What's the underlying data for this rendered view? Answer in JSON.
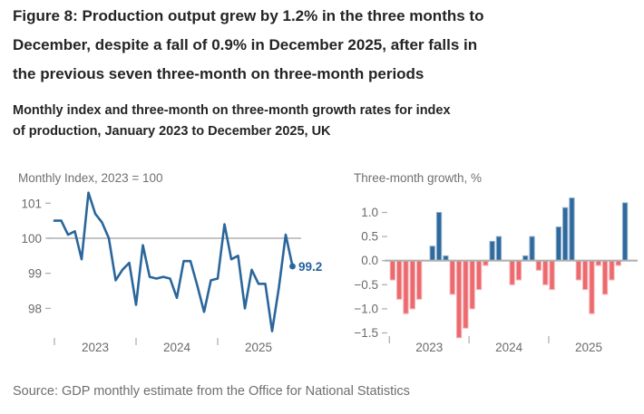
{
  "figure": {
    "title": "Figure 8: Production output grew by 1.2% in the three months to December, despite a fall of 0.9% in December 2025, after falls in the previous seven three-month on three-month periods",
    "subtitle": "Monthly index and three-month on three-month growth rates for index of production, January 2023 to December 2025, UK",
    "source": "Source: GDP monthly estimate from the Office for National Statistics"
  },
  "colors": {
    "line": "#2a669b",
    "bar_positive": "#2f6a9d",
    "bar_positive_edge": "#8fafcd",
    "bar_negative": "#ec6a6e",
    "bar_negative_edge": "#f6b1b5",
    "axis_line": "#b0b0b0",
    "tick_text": "#6a6a6a",
    "panel_title": "#707071",
    "annotation": "#26619c"
  },
  "chart_data": [
    {
      "type": "line",
      "title": "Monthly Index, 2023 = 100",
      "x": [
        "Jan 2023",
        "Feb 2023",
        "Mar 2023",
        "Apr 2023",
        "May 2023",
        "Jun 2023",
        "Jul 2023",
        "Aug 2023",
        "Sep 2023",
        "Oct 2023",
        "Nov 2023",
        "Dec 2023",
        "Jan 2024",
        "Feb 2024",
        "Mar 2024",
        "Apr 2024",
        "May 2024",
        "Jun 2024",
        "Jul 2024",
        "Aug 2024",
        "Sep 2024",
        "Oct 2024",
        "Nov 2024",
        "Dec 2024",
        "Jan 2025",
        "Feb 2025",
        "Mar 2025",
        "Apr 2025",
        "May 2025",
        "Jun 2025",
        "Jul 2025",
        "Aug 2025",
        "Sep 2025",
        "Oct 2025",
        "Nov 2025",
        "Dec 2025"
      ],
      "values": [
        100.5,
        100.5,
        100.1,
        100.2,
        99.4,
        101.3,
        100.7,
        100.45,
        100.0,
        98.8,
        99.1,
        99.3,
        98.1,
        99.8,
        98.9,
        98.85,
        98.9,
        98.85,
        98.3,
        99.35,
        99.35,
        98.65,
        97.9,
        98.8,
        98.85,
        100.4,
        99.4,
        99.5,
        98.0,
        99.1,
        98.7,
        98.7,
        97.35,
        98.6,
        100.1,
        99.2
      ],
      "yticks": [
        "101",
        "100",
        "99",
        "98"
      ],
      "ytick_values": [
        101,
        100,
        99,
        98
      ],
      "xtick_labels": [
        "2023",
        "2024",
        "2025"
      ],
      "reference_line": 100,
      "ylim": [
        97.3,
        101.3
      ],
      "end_label": "99.2",
      "grid": false
    },
    {
      "type": "bar",
      "title": "Three-month growth, %",
      "x": [
        "Jan 2023",
        "Feb 2023",
        "Mar 2023",
        "Apr 2023",
        "May 2023",
        "Jun 2023",
        "Jul 2023",
        "Aug 2023",
        "Sep 2023",
        "Oct 2023",
        "Nov 2023",
        "Dec 2023",
        "Jan 2024",
        "Feb 2024",
        "Mar 2024",
        "Apr 2024",
        "May 2024",
        "Jun 2024",
        "Jul 2024",
        "Aug 2024",
        "Sep 2024",
        "Oct 2024",
        "Nov 2024",
        "Dec 2024",
        "Jan 2025",
        "Feb 2025",
        "Mar 2025",
        "Apr 2025",
        "May 2025",
        "Jun 2025",
        "Jul 2025",
        "Aug 2025",
        "Sep 2025",
        "Oct 2025",
        "Nov 2025",
        "Dec 2025"
      ],
      "values": [
        -0.4,
        -0.8,
        -1.1,
        -1.0,
        -0.8,
        0.0,
        0.3,
        1.0,
        0.1,
        -0.7,
        -1.6,
        -1.4,
        -1.0,
        -0.6,
        -0.1,
        0.4,
        0.5,
        0.0,
        -0.5,
        -0.4,
        0.1,
        0.5,
        -0.2,
        -0.5,
        -0.6,
        0.7,
        1.1,
        1.3,
        -0.4,
        -0.6,
        -1.1,
        -0.1,
        -0.7,
        -0.4,
        -0.1,
        1.2
      ],
      "yticks": [
        "1.0",
        "0.5",
        "0.0",
        "−0.5",
        "−1.0",
        "−1.5"
      ],
      "ytick_values": [
        1.0,
        0.5,
        0.0,
        -0.5,
        -1.0,
        -1.5
      ],
      "xtick_labels": [
        "2023",
        "2024",
        "2025"
      ],
      "ylim": [
        -1.65,
        1.35
      ],
      "grid": false
    }
  ]
}
